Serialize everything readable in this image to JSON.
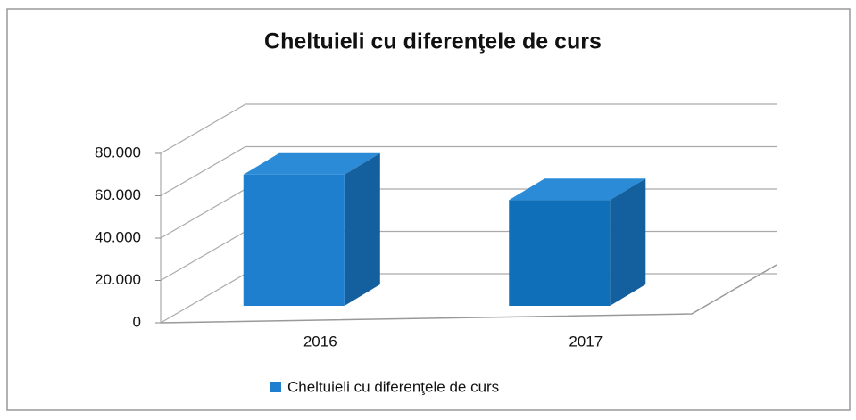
{
  "chart_data": {
    "type": "bar3d",
    "title": "Cheltuieli cu diferenţele de curs",
    "categories": [
      "2016",
      "2017"
    ],
    "series": [
      {
        "name": "Cheltuieli cu diferenţele de curs",
        "color": "#1f7fcf",
        "values": [
          62000,
          50000
        ]
      }
    ],
    "ylim": [
      0,
      80000
    ],
    "yticks": [
      0,
      {
        "value": 20000,
        "label": "20.000"
      },
      {
        "value": 40000,
        "label": "40.000"
      },
      {
        "value": 60000,
        "label": "60.000"
      },
      {
        "value": 80000,
        "label": "80.000"
      }
    ],
    "grid": true,
    "legend": "bottom"
  }
}
